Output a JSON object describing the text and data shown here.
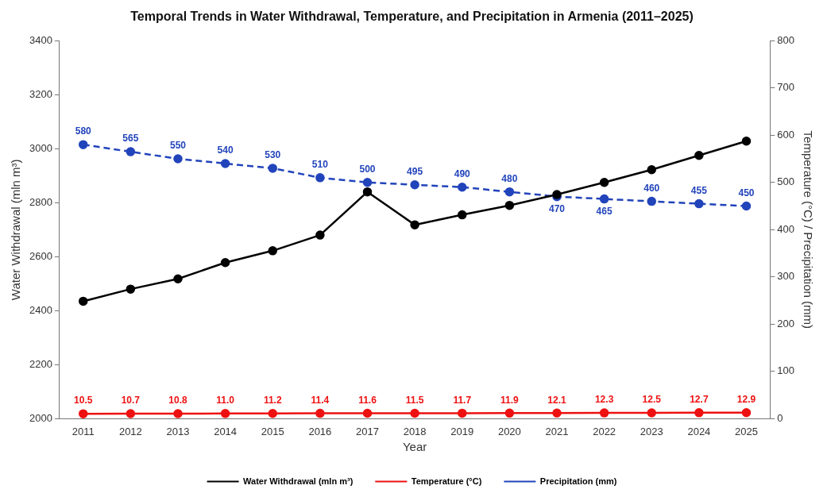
{
  "chart_data": {
    "type": "line",
    "title": "Temporal Trends in Water Withdrawal, Temperature, and Precipitation in Armenia (2011–2025)",
    "xlabel": "Year",
    "ylabel": "Water Withdrawal (mln m³)",
    "y2label": "Temperature (°C) / Precipitation (mm)",
    "categories": [
      "2011",
      "2012",
      "2013",
      "2014",
      "2015",
      "2016",
      "2017",
      "2018",
      "2019",
      "2020",
      "2021",
      "2022",
      "2023",
      "2024",
      "2025"
    ],
    "series": [
      {
        "name": "Water Withdrawal (mln m³)",
        "color": "#000000",
        "values": [
          2435,
          2480,
          2518,
          2578,
          2622,
          2680,
          2840,
          2718,
          2755,
          2790,
          2830,
          2875,
          2922,
          2975,
          3028
        ]
      },
      {
        "name": "Temperature (°C)",
        "color": "#ee1111",
        "axis": "y2",
        "value_labels": [
          "10.5",
          "10.7",
          "10.8",
          "11.0",
          "11.2",
          "11.4",
          "11.6",
          "11.5",
          "11.7",
          "11.9",
          "12.1",
          "12.3",
          "12.5",
          "12.7",
          "12.9"
        ],
        "values": [
          10.5,
          10.7,
          10.8,
          11.0,
          11.2,
          11.4,
          11.6,
          11.5,
          11.7,
          11.9,
          12.1,
          12.3,
          12.5,
          12.7,
          12.9
        ]
      },
      {
        "name": "Precipitation (mm)",
        "color": "#2244bb",
        "axis": "y2",
        "line_style": "dashed",
        "value_labels": [
          "580",
          "565",
          "550",
          "540",
          "530",
          "510",
          "500",
          "495",
          "490",
          "480",
          "470",
          "465",
          "460",
          "455",
          "450"
        ],
        "values": [
          580,
          565,
          550,
          540,
          530,
          510,
          500,
          495,
          490,
          480,
          470,
          465,
          460,
          455,
          450
        ]
      }
    ],
    "ylim": [
      2000,
      3400
    ],
    "yticks": [
      2000,
      2200,
      2400,
      2600,
      2800,
      3000,
      3200,
      3400
    ],
    "y2lim": [
      0,
      800
    ],
    "y2ticks": [
      0,
      100,
      200,
      300,
      400,
      500,
      600,
      700,
      800
    ],
    "grid": false,
    "legend": "bottom",
    "marker": "circle",
    "line_style": "solid"
  }
}
